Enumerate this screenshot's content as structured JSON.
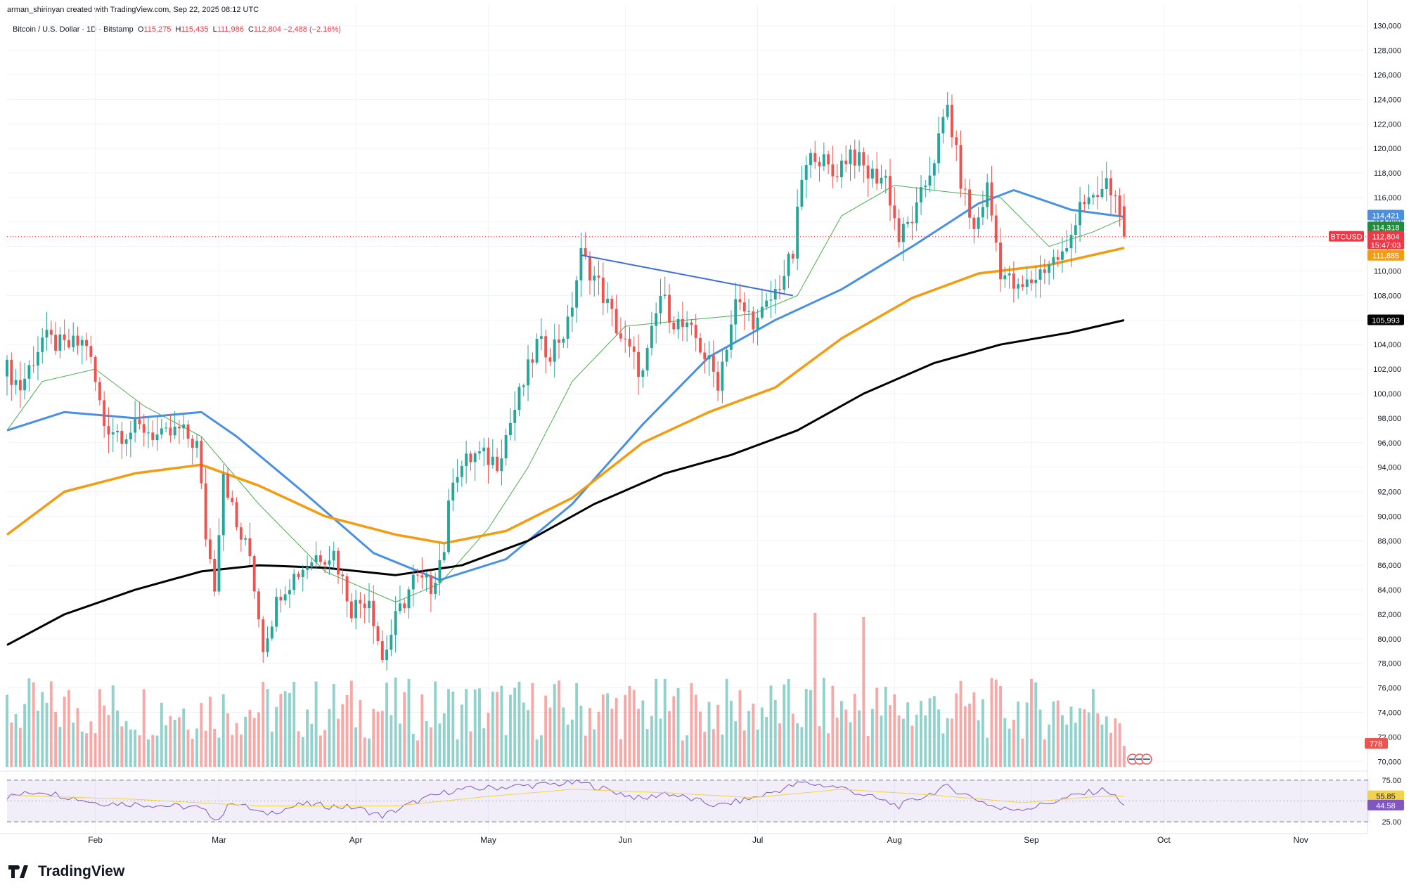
{
  "header": {
    "created_line": "arman_shirinyan created with TradingView.com, Sep 22, 2025 08:12 UTC",
    "symbol_line": "Bitcoin / U.S. Dollar · 1D · Bitstamp",
    "ohlc": {
      "o_label": "O",
      "o": "115,275",
      "h_label": "H",
      "h": "115,435",
      "l_label": "L",
      "l": "111,986",
      "c_label": "C",
      "c": "112,804",
      "change": "−2,488 (−2.16%)"
    }
  },
  "brand": {
    "name": "TradingView"
  },
  "colors": {
    "up": "#26a69a",
    "down": "#ef5350",
    "ma20": "#4caf50",
    "ma50": "#4a90e2",
    "ma100": "#f39c12",
    "ma200": "#000000",
    "rsi": "#7e57c2",
    "rsi_ma": "#f2d24b",
    "trendline": "#3f6ed8",
    "grid": "#f0f3fa"
  },
  "chart_data": {
    "type": "candlestick",
    "title": "Bitcoin / U.S. Dollar · 1D · Bitstamp",
    "x_ticks": [
      "Feb",
      "Mar",
      "Apr",
      "May",
      "Jun",
      "Jul",
      "Aug",
      "Sep",
      "Oct",
      "Nov"
    ],
    "x_tick_dates": [
      "2025-02-01",
      "2025-03-01",
      "2025-04-01",
      "2025-05-01",
      "2025-06-01",
      "2025-07-01",
      "2025-08-01",
      "2025-09-01",
      "2025-10-01",
      "2025-11-01"
    ],
    "x_range": [
      "2025-01-12",
      "2025-11-15"
    ],
    "ylim": [
      69500,
      130500
    ],
    "y_ticks": [
      70000,
      72000,
      74000,
      76000,
      78000,
      80000,
      82000,
      84000,
      86000,
      88000,
      90000,
      92000,
      94000,
      96000,
      98000,
      100000,
      102000,
      104000,
      106000,
      108000,
      110000,
      112000,
      114000,
      116000,
      118000,
      120000,
      122000,
      124000,
      126000,
      128000,
      130000
    ],
    "y_tick_labels": [
      "70,000",
      "72,000",
      "74,000",
      "76,000",
      "78,000",
      "80,000",
      "82,000",
      "84,000",
      "86,000",
      "88,000",
      "90,000",
      "92,000",
      "94,000",
      "96,000",
      "98,000",
      "100,000",
      "102,000",
      "104,000",
      "106,000",
      "108,000",
      "110,000",
      "112,000",
      "114,000",
      "116,000",
      "118,000",
      "120,000",
      "122,000",
      "124,000",
      "126,000",
      "128,000",
      "130,000"
    ],
    "price_anchors": [
      [
        "2025-01-12",
        102000
      ],
      [
        "2025-01-15",
        100500
      ],
      [
        "2025-01-20",
        104500
      ],
      [
        "2025-01-25",
        103800
      ],
      [
        "2025-01-30",
        104200
      ],
      [
        "2025-02-03",
        97500
      ],
      [
        "2025-02-07",
        96800
      ],
      [
        "2025-02-12",
        97200
      ],
      [
        "2025-02-16",
        96300
      ],
      [
        "2025-02-20",
        97000
      ],
      [
        "2025-02-24",
        95800
      ],
      [
        "2025-02-26",
        88500
      ],
      [
        "2025-02-28",
        84500
      ],
      [
        "2025-03-02",
        93800
      ],
      [
        "2025-03-05",
        89000
      ],
      [
        "2025-03-08",
        86800
      ],
      [
        "2025-03-11",
        79500
      ],
      [
        "2025-03-15",
        84000
      ],
      [
        "2025-03-19",
        85500
      ],
      [
        "2025-03-23",
        86800
      ],
      [
        "2025-03-27",
        87000
      ],
      [
        "2025-03-31",
        82500
      ],
      [
        "2025-04-04",
        83500
      ],
      [
        "2025-04-07",
        78300
      ],
      [
        "2025-04-10",
        81500
      ],
      [
        "2025-04-14",
        84800
      ],
      [
        "2025-04-18",
        84300
      ],
      [
        "2025-04-21",
        87500
      ],
      [
        "2025-04-23",
        93500
      ],
      [
        "2025-04-28",
        95000
      ],
      [
        "2025-05-03",
        94500
      ],
      [
        "2025-05-08",
        99800
      ],
      [
        "2025-05-12",
        104000
      ],
      [
        "2025-05-15",
        103500
      ],
      [
        "2025-05-19",
        105500
      ],
      [
        "2025-05-22",
        111300
      ],
      [
        "2025-05-26",
        108900
      ],
      [
        "2025-05-31",
        104600
      ],
      [
        "2025-06-05",
        101500
      ],
      [
        "2025-06-09",
        108000
      ],
      [
        "2025-06-12",
        106000
      ],
      [
        "2025-06-17",
        104500
      ],
      [
        "2025-06-22",
        101000
      ],
      [
        "2025-06-26",
        107300
      ],
      [
        "2025-07-01",
        105800
      ],
      [
        "2025-07-05",
        108300
      ],
      [
        "2025-07-09",
        111300
      ],
      [
        "2025-07-11",
        117500
      ],
      [
        "2025-07-14",
        119800
      ],
      [
        "2025-07-18",
        117800
      ],
      [
        "2025-07-22",
        119800
      ],
      [
        "2025-07-26",
        117900
      ],
      [
        "2025-07-30",
        117600
      ],
      [
        "2025-08-02",
        112600
      ],
      [
        "2025-08-06",
        114900
      ],
      [
        "2025-08-10",
        119300
      ],
      [
        "2025-08-13",
        123400
      ],
      [
        "2025-08-16",
        117400
      ],
      [
        "2025-08-19",
        113200
      ],
      [
        "2025-08-22",
        116800
      ],
      [
        "2025-08-25",
        110100
      ],
      [
        "2025-08-29",
        108300
      ],
      [
        "2025-09-01",
        109200
      ],
      [
        "2025-09-05",
        110700
      ],
      [
        "2025-09-09",
        111500
      ],
      [
        "2025-09-12",
        115900
      ],
      [
        "2025-09-15",
        115400
      ],
      [
        "2025-09-18",
        117100
      ],
      [
        "2025-09-21",
        115275
      ],
      [
        "2025-09-22",
        112804
      ]
    ],
    "series": [
      {
        "name": "MA20",
        "color": "#4caf50",
        "points": [
          [
            "2025-01-12",
            97000
          ],
          [
            "2025-01-20",
            101000
          ],
          [
            "2025-02-01",
            102000
          ],
          [
            "2025-02-12",
            99000
          ],
          [
            "2025-02-25",
            96500
          ],
          [
            "2025-03-10",
            91000
          ],
          [
            "2025-03-25",
            85500
          ],
          [
            "2025-04-10",
            83000
          ],
          [
            "2025-04-20",
            84500
          ],
          [
            "2025-05-01",
            89000
          ],
          [
            "2025-05-10",
            94000
          ],
          [
            "2025-05-20",
            101000
          ],
          [
            "2025-06-01",
            105500
          ],
          [
            "2025-06-15",
            106000
          ],
          [
            "2025-06-30",
            106500
          ],
          [
            "2025-07-10",
            108000
          ],
          [
            "2025-07-20",
            114500
          ],
          [
            "2025-08-01",
            117000
          ],
          [
            "2025-08-12",
            116500
          ],
          [
            "2025-08-25",
            116000
          ],
          [
            "2025-09-05",
            112000
          ],
          [
            "2025-09-15",
            113200
          ],
          [
            "2025-09-22",
            114318
          ]
        ]
      },
      {
        "name": "MA50",
        "color": "#4a90e2",
        "points": [
          [
            "2025-01-12",
            97000
          ],
          [
            "2025-01-25",
            98500
          ],
          [
            "2025-02-10",
            98000
          ],
          [
            "2025-02-25",
            98500
          ],
          [
            "2025-03-05",
            96500
          ],
          [
            "2025-03-20",
            92000
          ],
          [
            "2025-04-05",
            87000
          ],
          [
            "2025-04-20",
            84800
          ],
          [
            "2025-05-05",
            86500
          ],
          [
            "2025-05-20",
            91000
          ],
          [
            "2025-06-05",
            97500
          ],
          [
            "2025-06-20",
            103000
          ],
          [
            "2025-07-05",
            106000
          ],
          [
            "2025-07-20",
            108500
          ],
          [
            "2025-08-05",
            112000
          ],
          [
            "2025-08-20",
            115500
          ],
          [
            "2025-08-28",
            116600
          ],
          [
            "2025-09-10",
            115000
          ],
          [
            "2025-09-22",
            114421
          ]
        ]
      },
      {
        "name": "MA100",
        "color": "#f39c12",
        "points": [
          [
            "2025-01-12",
            88500
          ],
          [
            "2025-01-25",
            92000
          ],
          [
            "2025-02-10",
            93500
          ],
          [
            "2025-02-25",
            94200
          ],
          [
            "2025-03-10",
            92500
          ],
          [
            "2025-03-25",
            90000
          ],
          [
            "2025-04-10",
            88500
          ],
          [
            "2025-04-21",
            87800
          ],
          [
            "2025-05-05",
            88800
          ],
          [
            "2025-05-20",
            91500
          ],
          [
            "2025-06-05",
            96000
          ],
          [
            "2025-06-20",
            98500
          ],
          [
            "2025-07-05",
            100500
          ],
          [
            "2025-07-20",
            104500
          ],
          [
            "2025-08-05",
            107800
          ],
          [
            "2025-08-20",
            109800
          ],
          [
            "2025-09-05",
            110500
          ],
          [
            "2025-09-22",
            111885
          ]
        ]
      },
      {
        "name": "MA200",
        "color": "#000000",
        "points": [
          [
            "2025-01-12",
            79500
          ],
          [
            "2025-01-25",
            82000
          ],
          [
            "2025-02-10",
            84000
          ],
          [
            "2025-02-25",
            85500
          ],
          [
            "2025-03-10",
            86000
          ],
          [
            "2025-03-25",
            85800
          ],
          [
            "2025-04-10",
            85200
          ],
          [
            "2025-04-25",
            86000
          ],
          [
            "2025-05-10",
            88000
          ],
          [
            "2025-05-25",
            91000
          ],
          [
            "2025-06-10",
            93500
          ],
          [
            "2025-06-25",
            95000
          ],
          [
            "2025-07-10",
            97000
          ],
          [
            "2025-07-25",
            100000
          ],
          [
            "2025-08-10",
            102500
          ],
          [
            "2025-08-25",
            104000
          ],
          [
            "2025-09-10",
            105000
          ],
          [
            "2025-09-22",
            105993
          ]
        ]
      }
    ],
    "trendline": [
      [
        "2025-05-22",
        111300
      ],
      [
        "2025-07-09",
        108000
      ]
    ],
    "price_labels": [
      {
        "name": "MA50",
        "value": "114,421",
        "color": "#4a90e2"
      },
      {
        "name": "MA20",
        "value": "114,318",
        "color": "#1e8e3e"
      },
      {
        "name": "BTCUSD",
        "value": "112,804",
        "timer": "15:47:03",
        "color": "#f23645"
      },
      {
        "name": "MA100",
        "value": "111,885",
        "color": "#f39c12"
      },
      {
        "name": "MA200",
        "value": "105,993",
        "color": "#000000"
      },
      {
        "name": "Volume",
        "value": "778",
        "color": "#ef5350"
      }
    ],
    "rsi": {
      "levels": [
        "75.00",
        "25.00"
      ],
      "value": "44.58",
      "ma_value": "55.85",
      "ylim": [
        20,
        80
      ],
      "points": [
        [
          "2025-01-12",
          55
        ],
        [
          "2025-01-20",
          62
        ],
        [
          "2025-02-01",
          48
        ],
        [
          "2025-02-12",
          46
        ],
        [
          "2025-02-24",
          42
        ],
        [
          "2025-03-01",
          28
        ],
        [
          "2025-03-04",
          50
        ],
        [
          "2025-03-11",
          34
        ],
        [
          "2025-03-20",
          46
        ],
        [
          "2025-04-01",
          42
        ],
        [
          "2025-04-07",
          32
        ],
        [
          "2025-04-15",
          50
        ],
        [
          "2025-04-23",
          63
        ],
        [
          "2025-05-08",
          68
        ],
        [
          "2025-05-22",
          72
        ],
        [
          "2025-06-05",
          52
        ],
        [
          "2025-06-10",
          60
        ],
        [
          "2025-06-22",
          44
        ],
        [
          "2025-07-01",
          55
        ],
        [
          "2025-07-11",
          72
        ],
        [
          "2025-07-20",
          66
        ],
        [
          "2025-08-02",
          44
        ],
        [
          "2025-08-13",
          67
        ],
        [
          "2025-08-25",
          40
        ],
        [
          "2025-09-01",
          42
        ],
        [
          "2025-09-12",
          58
        ],
        [
          "2025-09-18",
          64
        ],
        [
          "2025-09-22",
          44.58
        ]
      ],
      "ma_points": [
        [
          "2025-01-12",
          57
        ],
        [
          "2025-02-10",
          52
        ],
        [
          "2025-03-10",
          44
        ],
        [
          "2025-04-10",
          44
        ],
        [
          "2025-04-30",
          55
        ],
        [
          "2025-05-20",
          64
        ],
        [
          "2025-06-10",
          60
        ],
        [
          "2025-06-30",
          54
        ],
        [
          "2025-07-20",
          64
        ],
        [
          "2025-08-10",
          57
        ],
        [
          "2025-08-30",
          48
        ],
        [
          "2025-09-15",
          55
        ],
        [
          "2025-09-22",
          55.85
        ]
      ]
    },
    "volume_spikes": [
      [
        "2025-07-14",
        0.73
      ],
      [
        "2025-07-25",
        0.71
      ]
    ],
    "grid": true,
    "legend": "none"
  }
}
